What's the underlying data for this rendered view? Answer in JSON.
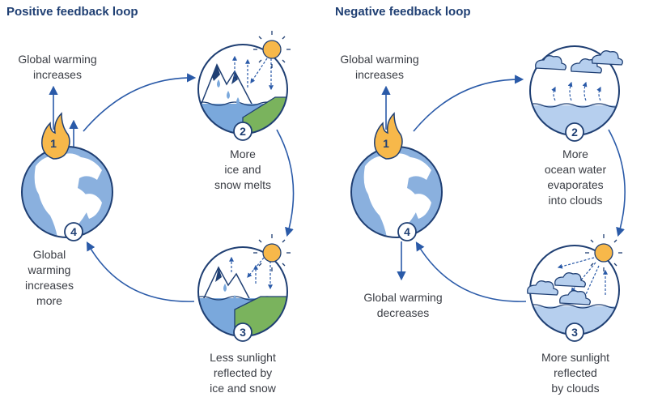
{
  "colors": {
    "navy": "#1f3f73",
    "arrow": "#2a5aa8",
    "earth_land": "#ffffff",
    "earth_water": "#8ab0de",
    "water": "#7aa8dc",
    "water_light": "#b6cfee",
    "land_green": "#7ab35d",
    "sun": "#f7b84a",
    "flame": "#f7b84a"
  },
  "positive": {
    "title": "Positive feedback loop",
    "label_top": [
      "Global warming",
      "increases"
    ],
    "label_2": [
      "More",
      "ice and",
      "snow melts"
    ],
    "label_3": [
      "Less sunlight",
      "reflected by",
      "ice and snow"
    ],
    "label_4": [
      "Global",
      "warming",
      "increases",
      "more"
    ],
    "steps": [
      "1",
      "2",
      "3",
      "4"
    ]
  },
  "negative": {
    "title": "Negative feedback loop",
    "label_top": [
      "Global warming",
      "increases"
    ],
    "label_2": [
      "More",
      "ocean water",
      "evaporates",
      "into clouds"
    ],
    "label_3": [
      "More sunlight",
      "reflected",
      "by clouds"
    ],
    "label_bottom": [
      "Global warming",
      "decreases"
    ],
    "steps": [
      "1",
      "2",
      "3",
      "4"
    ]
  },
  "icons": {
    "earth": "globe-africa-europe",
    "flame": "fire-flame",
    "sun": "sun",
    "mountain": "ice-mountain",
    "cloud": "cloud",
    "droplet": "water-droplet"
  }
}
